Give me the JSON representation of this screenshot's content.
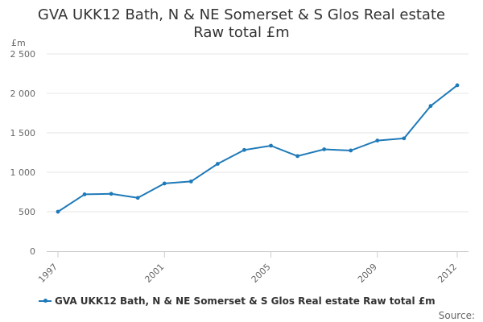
{
  "title_line1": "GVA UKK12 Bath, N & NE Somerset & S Glos Real estate",
  "title_line2": "Raw total £m",
  "credit": "Source:",
  "colors": {
    "series": "#1f7ab8",
    "grid": "#e6e6e6",
    "axis_text": "#666666"
  },
  "chart_data": {
    "type": "line",
    "ylabel": "£m",
    "xlabel": "",
    "xlim": [
      1997,
      2012
    ],
    "ylim": [
      0,
      2500
    ],
    "yticks": [
      {
        "value": 0,
        "label": "0"
      },
      {
        "value": 500,
        "label": "500"
      },
      {
        "value": 1000,
        "label": "1 000"
      },
      {
        "value": 1500,
        "label": "1 500"
      },
      {
        "value": 2000,
        "label": "2 000"
      },
      {
        "value": 2500,
        "label": "2 500"
      }
    ],
    "xticks": [
      {
        "value": 1997,
        "label": "1997"
      },
      {
        "value": 2001,
        "label": "2001"
      },
      {
        "value": 2005,
        "label": "2005"
      },
      {
        "value": 2009,
        "label": "2009"
      },
      {
        "value": 2012,
        "label": "2012"
      }
    ],
    "grid": true,
    "legend_position": "bottom-left",
    "series": [
      {
        "name": "GVA UKK12 Bath, N & NE Somerset & S Glos Real estate Raw total £m",
        "x": [
          1997,
          1998,
          1999,
          2000,
          2001,
          2002,
          2003,
          2004,
          2005,
          2006,
          2007,
          2008,
          2009,
          2010,
          2011,
          2012
        ],
        "y": [
          500,
          720,
          727,
          676,
          858,
          884,
          1107,
          1283,
          1337,
          1205,
          1291,
          1276,
          1402,
          1430,
          1840,
          2103
        ]
      }
    ]
  }
}
